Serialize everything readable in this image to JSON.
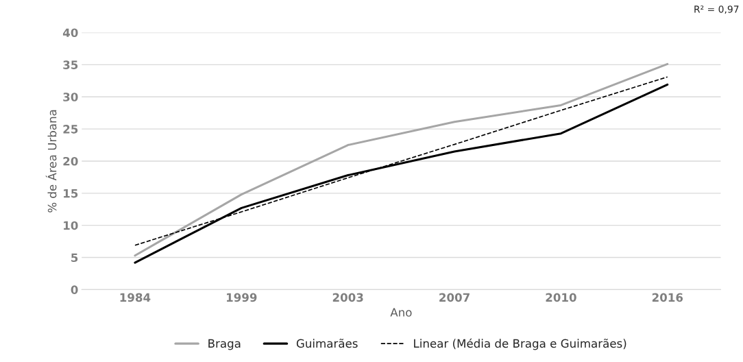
{
  "chart_data": {
    "type": "line",
    "xlabel": "Ano",
    "ylabel": "% de Área Urbana",
    "categories": [
      "1984",
      "1999",
      "2003",
      "2007",
      "2010",
      "2016"
    ],
    "series": [
      {
        "name": "Braga",
        "color": "#a6a6a6",
        "line_style": "solid",
        "values": [
          5.3,
          14.8,
          22.5,
          26.1,
          28.7,
          35.1
        ]
      },
      {
        "name": "Guimarães",
        "color": "#000000",
        "line_style": "solid",
        "values": [
          4.2,
          12.7,
          17.8,
          21.5,
          24.3,
          31.9
        ]
      },
      {
        "name": "Linear (Média de Braga e Guimarães)",
        "color": "#000000",
        "line_style": "dashed",
        "values": [
          6.9,
          12.1,
          17.4,
          22.6,
          27.9,
          33.1
        ]
      }
    ],
    "ylim": [
      0,
      40
    ],
    "yticks": [
      0,
      5,
      10,
      15,
      20,
      25,
      30,
      35,
      40
    ],
    "grid": "y",
    "legend": "bottom",
    "marker": "none",
    "annotations": [
      "R² = 0,97"
    ]
  }
}
